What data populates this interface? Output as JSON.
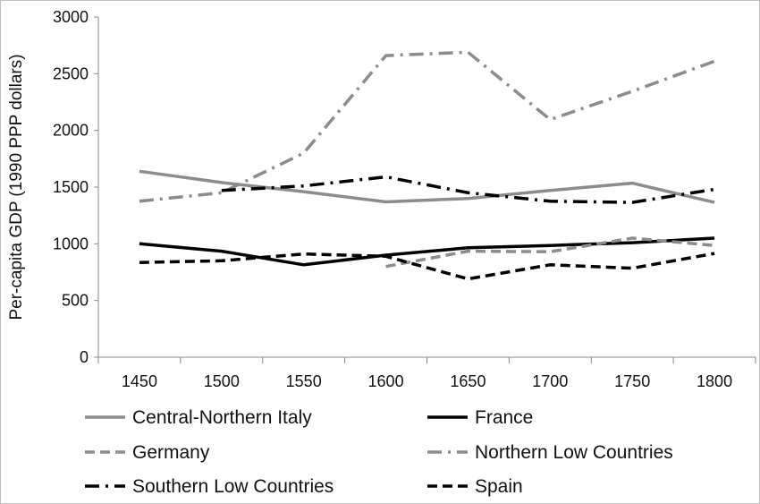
{
  "chart_data": {
    "type": "line",
    "title": "",
    "xlabel": "",
    "ylabel": "Per-capita GDP (1990 PPP dollars)",
    "x": [
      1450,
      1500,
      1550,
      1600,
      1650,
      1700,
      1750,
      1800
    ],
    "xticks": [
      "1450",
      "1500",
      "1550",
      "1600",
      "1650",
      "1700",
      "1750",
      "1800"
    ],
    "ylim": [
      0,
      3000
    ],
    "yticks": [
      "0",
      "500",
      "1000",
      "1500",
      "2000",
      "2500",
      "3000"
    ],
    "grid": false,
    "legend": "bottom",
    "series": [
      {
        "name": "Central-Northern Italy",
        "color": "#8c8c8c",
        "dash": "solid",
        "values": [
          1640,
          1540,
          1460,
          1370,
          1400,
          1470,
          1535,
          1365
        ]
      },
      {
        "name": "France",
        "color": "#000000",
        "dash": "solid",
        "values": [
          1000,
          935,
          815,
          900,
          965,
          985,
          1010,
          1050
        ]
      },
      {
        "name": "Germany",
        "color": "#8c8c8c",
        "dash": "dash",
        "values": [
          null,
          null,
          null,
          800,
          935,
          930,
          1050,
          985
        ]
      },
      {
        "name": "Northern Low Countries",
        "color": "#8c8c8c",
        "dash": "dashdot",
        "values": [
          1375,
          1450,
          1800,
          2660,
          2690,
          2095,
          2345,
          2610
        ]
      },
      {
        "name": "Southern Low Countries",
        "color": "#000000",
        "dash": "dashdot",
        "values": [
          null,
          1470,
          1510,
          1590,
          1450,
          1375,
          1365,
          1480
        ]
      },
      {
        "name": "Spain",
        "color": "#000000",
        "dash": "dash",
        "values": [
          835,
          850,
          910,
          890,
          690,
          815,
          785,
          915
        ]
      }
    ]
  }
}
